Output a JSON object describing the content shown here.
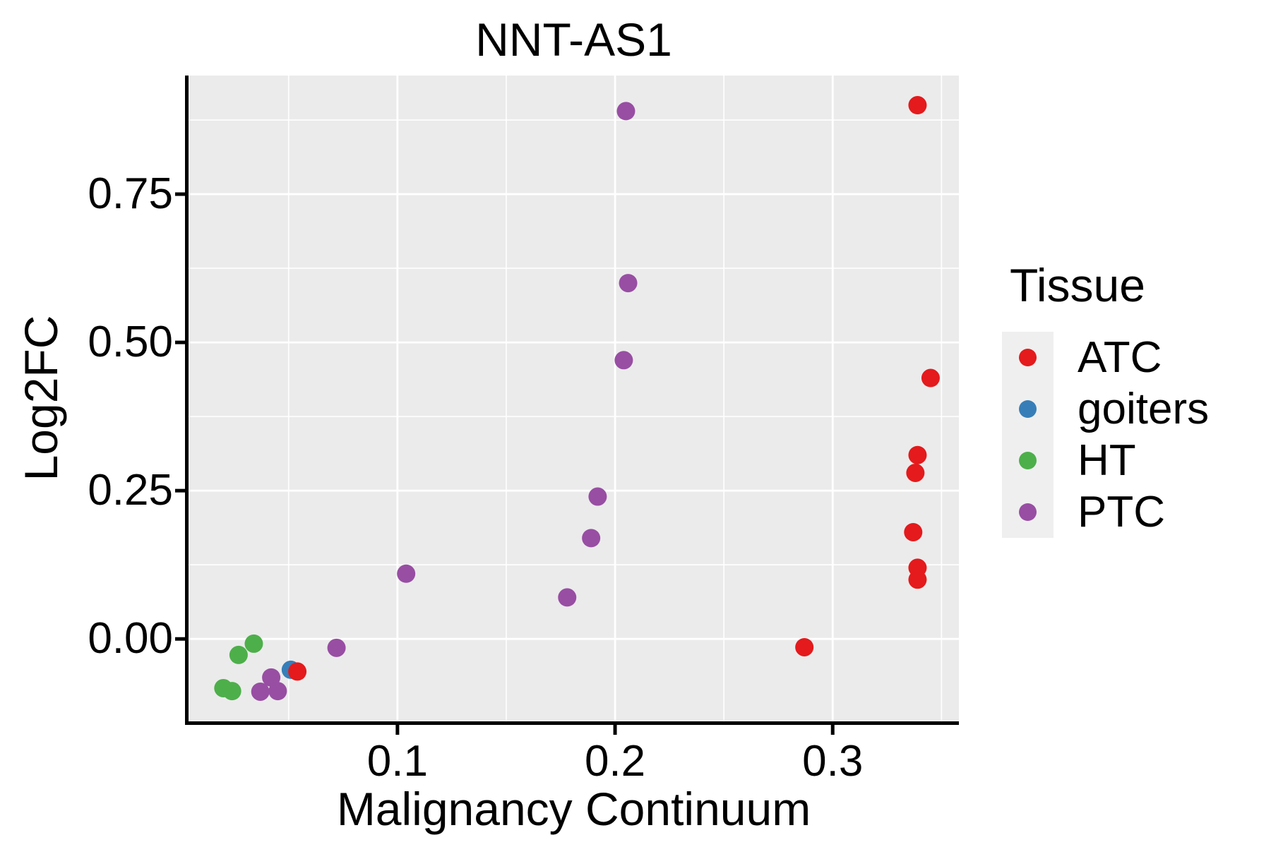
{
  "figure": {
    "title": "NNT-AS1"
  },
  "axes": {
    "x": {
      "label": "Malignancy Continuum",
      "tick_labels": [
        "0.1",
        "0.2",
        "0.3"
      ],
      "major_ticks": [
        0.1,
        0.2,
        0.3
      ],
      "minor_ticks": [
        0.05,
        0.15,
        0.25,
        0.35
      ],
      "lim": [
        0.004,
        0.358
      ]
    },
    "y": {
      "label": "Log2FC",
      "tick_labels": [
        "0.00",
        "0.25",
        "0.50",
        "0.75"
      ],
      "major_ticks": [
        0,
        0.25,
        0.5,
        0.75
      ],
      "minor_ticks": [
        0.125,
        0.375,
        0.625,
        0.875
      ],
      "lim": [
        -0.139,
        0.95
      ]
    }
  },
  "legend": {
    "title": "Tissue",
    "entries": [
      {
        "label": "ATC",
        "color": "#E41A1C"
      },
      {
        "label": "goiters",
        "color": "#377EB8"
      },
      {
        "label": "HT",
        "color": "#4DAF4A"
      },
      {
        "label": "PTC",
        "color": "#984EA3"
      }
    ]
  },
  "style": {
    "panel_bg": "#EBEBEB",
    "grid_color": "#FFFFFF",
    "axis_color": "#000000",
    "legend_key_bg": "#EFEFEF",
    "text_color": "#000000",
    "point_radius": 13,
    "legend_point_radius": 12.5
  },
  "chart_data": {
    "type": "scatter",
    "title": "NNT-AS1",
    "xlabel": "Malignancy Continuum",
    "ylabel": "Log2FC",
    "xlim": [
      0.004,
      0.358
    ],
    "ylim": [
      -0.139,
      0.95
    ],
    "grid": true,
    "legend_position": "right",
    "draw_order": [
      "goiters",
      "HT",
      "PTC",
      "ATC"
    ],
    "series": [
      {
        "name": "ATC",
        "color": "#E41A1C",
        "points": [
          [
            0.339,
            0.9
          ],
          [
            0.345,
            0.44
          ],
          [
            0.339,
            0.31
          ],
          [
            0.338,
            0.28
          ],
          [
            0.337,
            0.18
          ],
          [
            0.339,
            0.12
          ],
          [
            0.339,
            0.1
          ],
          [
            0.287,
            -0.014
          ],
          [
            0.054,
            -0.055
          ]
        ]
      },
      {
        "name": "goiters",
        "color": "#377EB8",
        "points": [
          [
            0.051,
            -0.052
          ]
        ]
      },
      {
        "name": "HT",
        "color": "#4DAF4A",
        "points": [
          [
            0.034,
            -0.008
          ],
          [
            0.027,
            -0.027
          ],
          [
            0.02,
            -0.083
          ],
          [
            0.024,
            -0.088
          ]
        ]
      },
      {
        "name": "PTC",
        "color": "#984EA3",
        "points": [
          [
            0.205,
            0.89
          ],
          [
            0.206,
            0.6
          ],
          [
            0.204,
            0.47
          ],
          [
            0.192,
            0.24
          ],
          [
            0.189,
            0.17
          ],
          [
            0.178,
            0.07
          ],
          [
            0.104,
            0.11
          ],
          [
            0.072,
            -0.015
          ],
          [
            0.042,
            -0.065
          ],
          [
            0.037,
            -0.089
          ],
          [
            0.045,
            -0.088
          ]
        ]
      }
    ]
  }
}
